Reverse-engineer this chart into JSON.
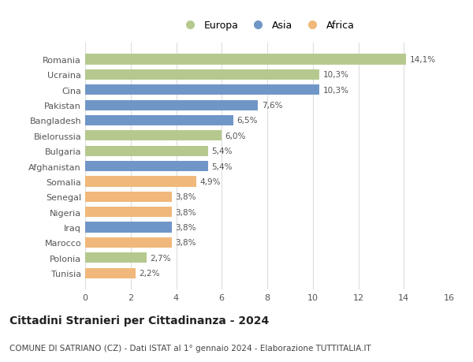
{
  "categories": [
    "Romania",
    "Ucraina",
    "Cina",
    "Pakistan",
    "Bangladesh",
    "Bielorussia",
    "Bulgaria",
    "Afghanistan",
    "Somalia",
    "Senegal",
    "Nigeria",
    "Iraq",
    "Marocco",
    "Polonia",
    "Tunisia"
  ],
  "values": [
    14.1,
    10.3,
    10.3,
    7.6,
    6.5,
    6.0,
    5.4,
    5.4,
    4.9,
    3.8,
    3.8,
    3.8,
    3.8,
    2.7,
    2.2
  ],
  "labels": [
    "14,1%",
    "10,3%",
    "10,3%",
    "7,6%",
    "6,5%",
    "6,0%",
    "5,4%",
    "5,4%",
    "4,9%",
    "3,8%",
    "3,8%",
    "3,8%",
    "3,8%",
    "2,7%",
    "2,2%"
  ],
  "continents": [
    "Europa",
    "Europa",
    "Asia",
    "Asia",
    "Asia",
    "Europa",
    "Europa",
    "Asia",
    "Africa",
    "Africa",
    "Africa",
    "Asia",
    "Africa",
    "Europa",
    "Africa"
  ],
  "colors": {
    "Europa": "#b5c98e",
    "Asia": "#7096c8",
    "Africa": "#f0b87a"
  },
  "xlim": [
    0,
    16
  ],
  "xticks": [
    0,
    2,
    4,
    6,
    8,
    10,
    12,
    14,
    16
  ],
  "title": "Cittadini Stranieri per Cittadinanza - 2024",
  "subtitle": "COMUNE DI SATRIANO (CZ) - Dati ISTAT al 1° gennaio 2024 - Elaborazione TUTTITALIA.IT",
  "legend_order": [
    "Europa",
    "Asia",
    "Africa"
  ],
  "background_color": "#ffffff",
  "grid_color": "#dddddd",
  "bar_height": 0.68,
  "title_fontsize": 10,
  "subtitle_fontsize": 7.5,
  "label_fontsize": 7.5,
  "tick_fontsize": 8,
  "legend_fontsize": 9
}
